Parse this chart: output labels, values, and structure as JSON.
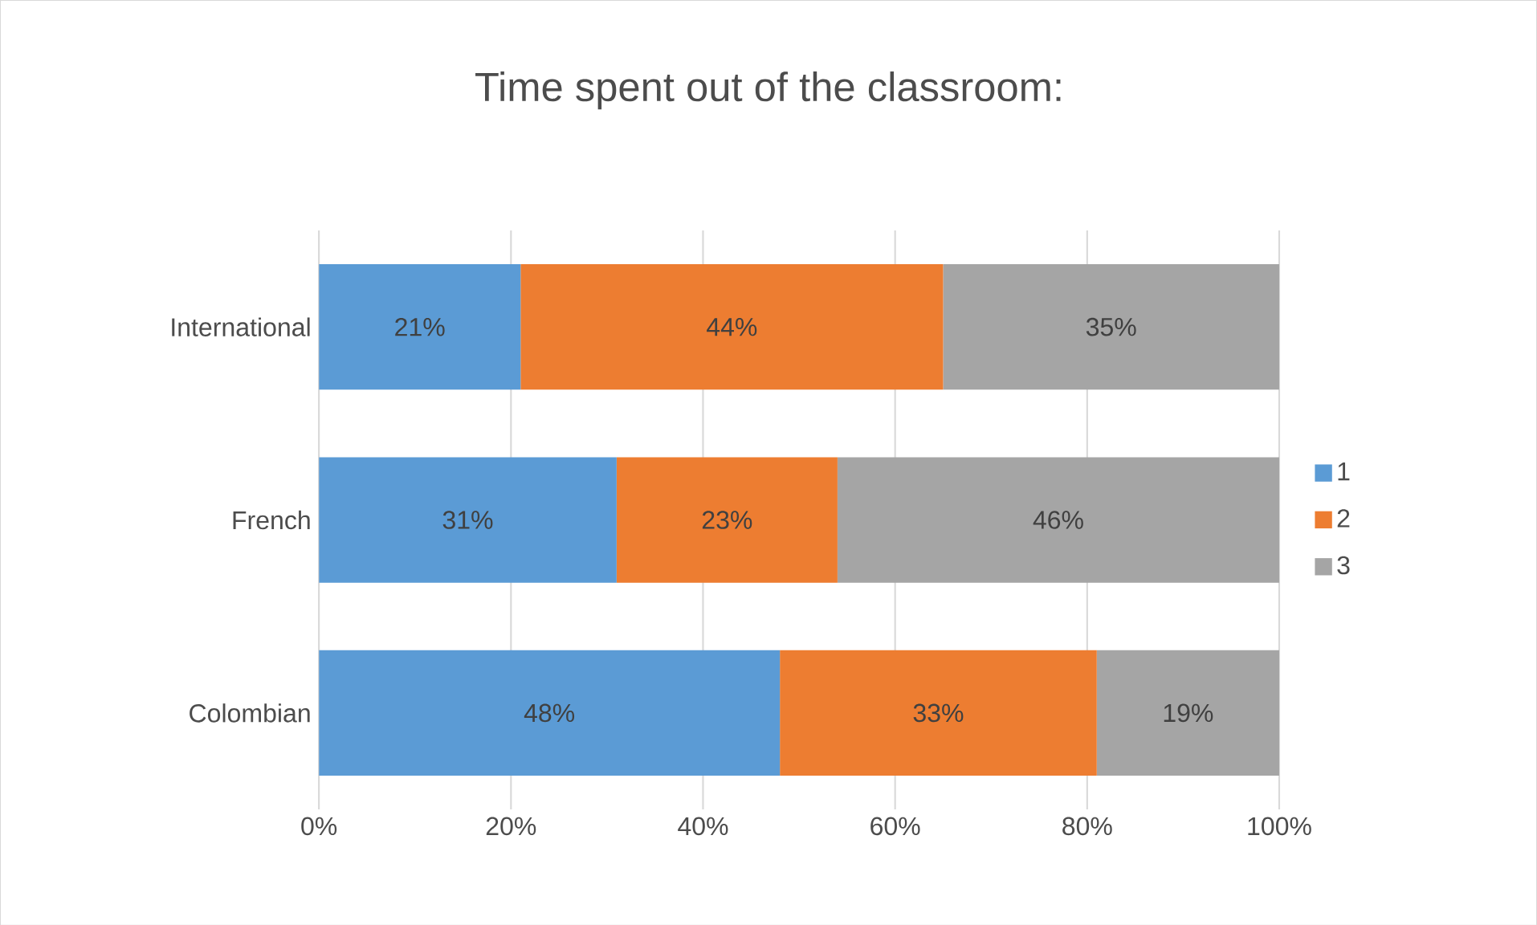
{
  "chart_data": {
    "type": "bar",
    "orientation": "horizontal",
    "stacked": true,
    "title": "Time spent out of the classroom:",
    "categories": [
      "International",
      "French",
      "Colombian"
    ],
    "series": [
      {
        "name": "1",
        "color": "#5b9bd5",
        "values": [
          21,
          31,
          48
        ],
        "value_labels": [
          "21%",
          "31%",
          "48%"
        ]
      },
      {
        "name": "2",
        "color": "#ed7d31",
        "values": [
          44,
          23,
          33
        ],
        "value_labels": [
          "44%",
          "23%",
          "33%"
        ]
      },
      {
        "name": "3",
        "color": "#a5a5a5",
        "values": [
          35,
          46,
          19
        ],
        "value_labels": [
          "35%",
          "46%",
          "19%"
        ]
      }
    ],
    "xlim": [
      0,
      100
    ],
    "xticks": [
      {
        "value": 0,
        "label": "0%"
      },
      {
        "value": 20,
        "label": "20%"
      },
      {
        "value": 40,
        "label": "40%"
      },
      {
        "value": 60,
        "label": "60%"
      },
      {
        "value": 80,
        "label": "80%"
      },
      {
        "value": 100,
        "label": "100%"
      }
    ],
    "grid": "x",
    "legend": "right"
  }
}
